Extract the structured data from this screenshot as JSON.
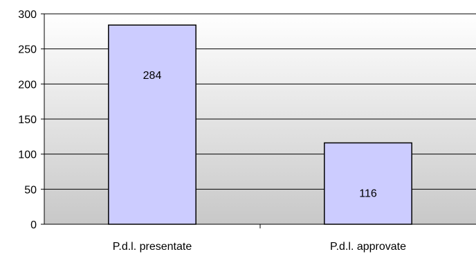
{
  "chart_data": {
    "type": "bar",
    "categories": [
      "P.d.l. presentate",
      "P.d.l. approvate"
    ],
    "values": [
      284,
      116
    ],
    "data_labels": [
      "284",
      "116"
    ],
    "title": "",
    "xlabel": "",
    "ylabel": "",
    "ylim": [
      0,
      300
    ],
    "yticks": [
      "0",
      "50",
      "100",
      "150",
      "200",
      "250",
      "300"
    ],
    "grid": true,
    "legend": "none",
    "colors": {
      "bar_fill": "#ccccff",
      "bar_stroke": "#000000",
      "plot_bg_top": "#ffffff",
      "plot_bg_bottom": "#c8c8c8",
      "gridline": "#000000"
    }
  }
}
